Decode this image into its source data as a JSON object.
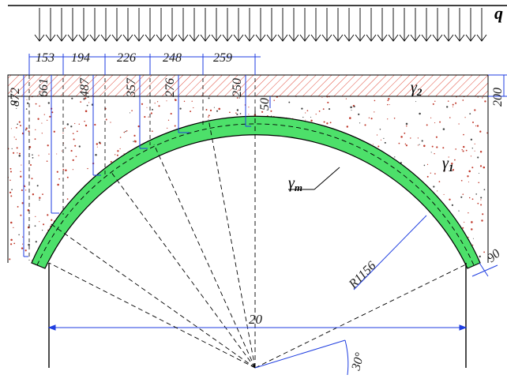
{
  "load_symbol": "q",
  "dimensions": {
    "spans": [
      "153",
      "194",
      "226",
      "248",
      "259"
    ],
    "heights": [
      "872",
      "661",
      "487",
      "357",
      "276",
      "250",
      "50"
    ],
    "fill_thickness": "200",
    "arch_thickness": "90",
    "radius": "R1156",
    "span_total": "20",
    "angle": "30°"
  },
  "layers": {
    "gamma2": {
      "symbol": "γ",
      "sub": "2"
    },
    "gamma1": {
      "symbol": "γ",
      "sub": "1"
    },
    "gammam": {
      "symbol": "γ",
      "sub": "m"
    }
  },
  "colors": {
    "arch_fill": "#4de06a",
    "fill_hatch": "#e04a3a",
    "dim": "#1f3ee0",
    "soil_dot": "#c0392b"
  }
}
